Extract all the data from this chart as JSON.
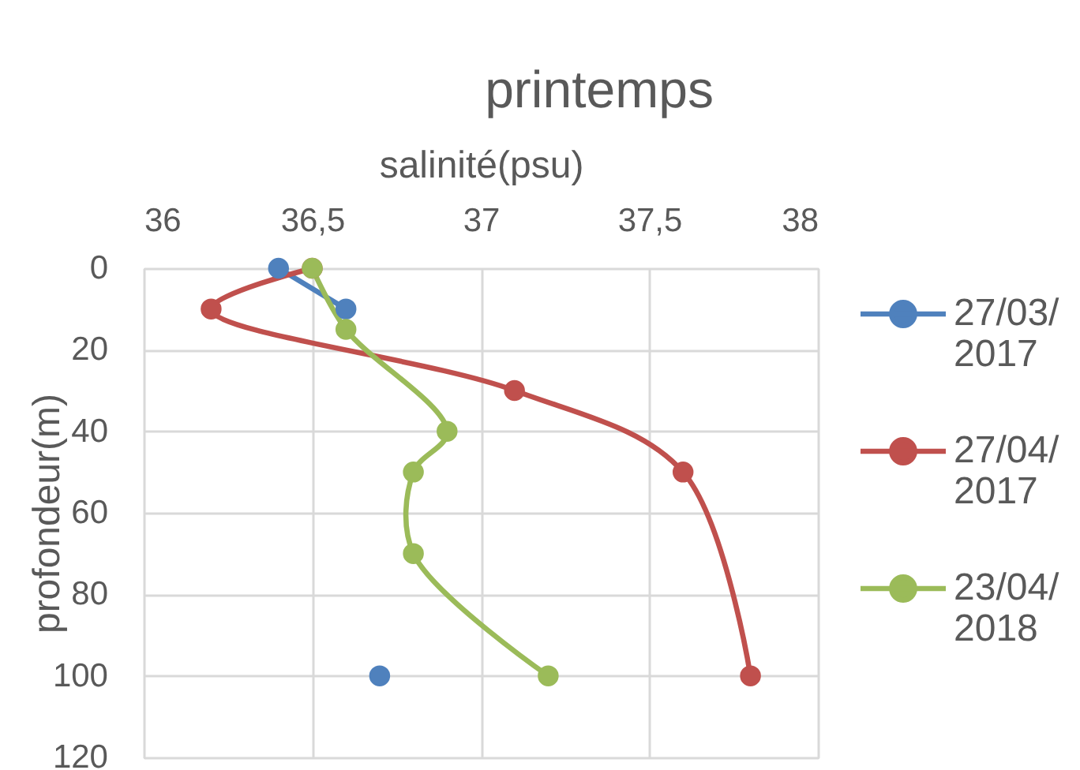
{
  "chart_data": {
    "type": "line",
    "title": "printemps",
    "xlabel": "salinité(psu)",
    "ylabel": "profondeur(m)",
    "xlim": [
      36,
      38
    ],
    "xticks": [
      36,
      {
        "value": 36.5,
        "label": "36,5"
      },
      37,
      {
        "value": 37.5,
        "label": "37,5"
      },
      38
    ],
    "ylim": [
      120,
      0
    ],
    "yticks": [
      0,
      20,
      40,
      60,
      80,
      100,
      120
    ],
    "grid": true,
    "legend": "right",
    "marker": "circle",
    "line_style": "solid",
    "series": [
      {
        "name": "27/03/2017",
        "color": "#4f81bd",
        "x": [
          36.4,
          36.6,
          null,
          36.7
        ],
        "values": [
          0,
          10,
          null,
          100
        ]
      },
      {
        "name": "27/04/2017",
        "color": "#c0504d",
        "x": [
          36.5,
          36.2,
          37.1,
          37.6,
          37.8
        ],
        "values": [
          0,
          10,
          30,
          50,
          100
        ]
      },
      {
        "name": "23/04/2018",
        "color": "#9bbb59",
        "x": [
          36.5,
          36.6,
          36.9,
          36.8,
          36.8,
          37.2
        ],
        "values": [
          0,
          15,
          40,
          50,
          70,
          100
        ]
      }
    ]
  }
}
